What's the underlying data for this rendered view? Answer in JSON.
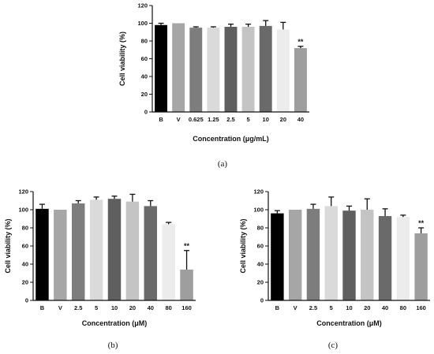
{
  "chart_data": [
    {
      "type": "bar",
      "panel_label": "(a)",
      "xlabel": "Concentration (μg/mL)",
      "ylabel": "Cell viability (%)",
      "ylim": [
        0,
        120
      ],
      "yticks": [
        0,
        20,
        40,
        60,
        80,
        100,
        120
      ],
      "categories": [
        "B",
        "V",
        "0.625",
        "1.25",
        "2.5",
        "5",
        "10",
        "20",
        "40"
      ],
      "values": [
        98,
        100,
        95,
        95,
        96,
        96,
        97,
        93,
        72
      ],
      "error": [
        2,
        0,
        1,
        1,
        3,
        3,
        6,
        8,
        2
      ],
      "annotations": [
        {
          "category": "40",
          "text": "**"
        }
      ],
      "colors": [
        "#000000",
        "#a6a6a6",
        "#7d7d7d",
        "#dadada",
        "#5f5f5f",
        "#c4c4c4",
        "#6a6a6a",
        "#ececec",
        "#9e9e9e"
      ]
    },
    {
      "type": "bar",
      "panel_label": "(b)",
      "xlabel": "Concentration (μM)",
      "ylabel": "Cell viability (%)",
      "ylim": [
        0,
        120
      ],
      "yticks": [
        0,
        20,
        40,
        60,
        80,
        100,
        120
      ],
      "categories": [
        "B",
        "V",
        "2.5",
        "5",
        "10",
        "20",
        "40",
        "80",
        "160"
      ],
      "values": [
        101,
        100,
        107,
        111,
        112,
        109,
        104,
        84,
        34
      ],
      "error": [
        5,
        0,
        3,
        3,
        3,
        8,
        6,
        2,
        21
      ],
      "annotations": [
        {
          "category": "160",
          "text": "**"
        }
      ],
      "colors": [
        "#000000",
        "#a6a6a6",
        "#7d7d7d",
        "#dadada",
        "#5f5f5f",
        "#c4c4c4",
        "#6a6a6a",
        "#ececec",
        "#9e9e9e"
      ]
    },
    {
      "type": "bar",
      "panel_label": "(c)",
      "xlabel": "Concentration (μM)",
      "ylabel": "Cell viability (%)",
      "ylim": [
        0,
        120
      ],
      "yticks": [
        0,
        20,
        40,
        60,
        80,
        100,
        120
      ],
      "categories": [
        "B",
        "V",
        "2.5",
        "5",
        "10",
        "20",
        "40",
        "80",
        "160"
      ],
      "values": [
        96,
        100,
        101,
        104,
        99,
        100,
        93,
        92,
        74
      ],
      "error": [
        3,
        0,
        5,
        10,
        5,
        12,
        8,
        2,
        6
      ],
      "annotations": [
        {
          "category": "160",
          "text": "**"
        }
      ],
      "colors": [
        "#000000",
        "#a6a6a6",
        "#7d7d7d",
        "#dadada",
        "#5f5f5f",
        "#c4c4c4",
        "#6a6a6a",
        "#ececec",
        "#9e9e9e"
      ]
    }
  ]
}
